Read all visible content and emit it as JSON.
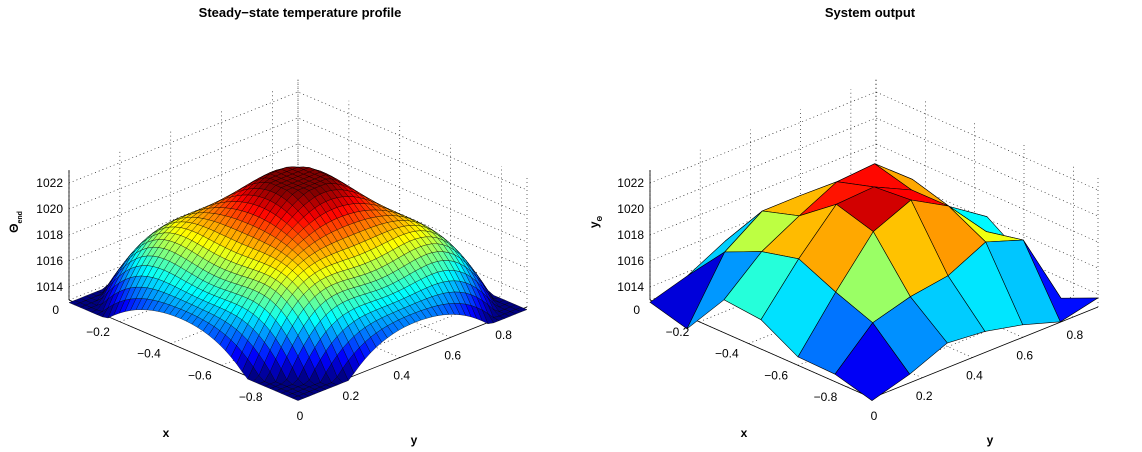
{
  "chart_data": [
    {
      "type": "surface",
      "title": "Steady−state temperature profile",
      "xlabel": "x",
      "ylabel": "y",
      "zlabel": "Θ",
      "zlabel_sub": "end",
      "x_ticks": [
        "0",
        "−0.2",
        "−0.4",
        "−0.6",
        "−0.8"
      ],
      "y_ticks": [
        "0",
        "0.2",
        "0.4",
        "0.6",
        "0.8"
      ],
      "z_ticks": [
        "1014",
        "1016",
        "1018",
        "1020",
        "1022"
      ],
      "xlim": [
        -0.9,
        0
      ],
      "ylim": [
        0,
        0.9
      ],
      "zlim": [
        1013,
        1023
      ],
      "grid": true,
      "colormap": "jet",
      "mesh_resolution": 41,
      "description_values": {
        "min_z": 1012.8,
        "max_z": 1022.4,
        "corner_z": 1013.8
      }
    },
    {
      "type": "surface",
      "title": "System output",
      "xlabel": "x",
      "ylabel": "y",
      "zlabel": "y",
      "zlabel_sub": "Θ",
      "x_ticks": [
        "0",
        "−0.2",
        "−0.4",
        "−0.6",
        "−0.8"
      ],
      "y_ticks": [
        "0",
        "0.2",
        "0.4",
        "0.6",
        "0.8"
      ],
      "z_ticks": [
        "1014",
        "1016",
        "1018",
        "1020",
        "1022"
      ],
      "xlim": [
        -0.9,
        0
      ],
      "ylim": [
        0,
        0.9
      ],
      "zlim": [
        1013,
        1023
      ],
      "grid": true,
      "colormap": "jet",
      "mesh_resolution": 6
    }
  ]
}
